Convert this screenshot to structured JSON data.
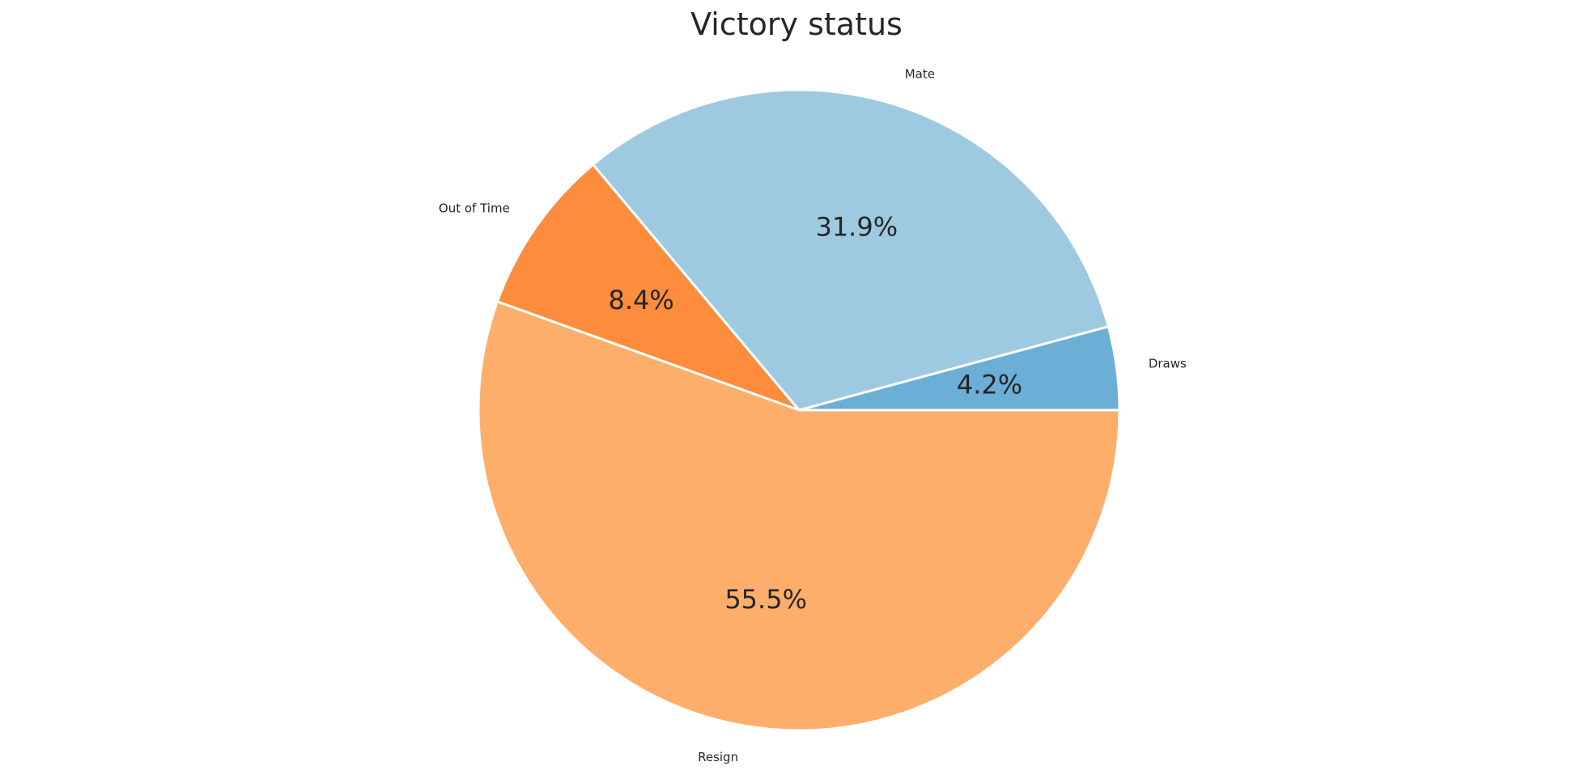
{
  "chart_data": {
    "type": "pie",
    "title": "Victory status",
    "slices": [
      {
        "label": "Draws",
        "value": 4.2,
        "pct_label": "4.2%",
        "color": "#6baed6"
      },
      {
        "label": "Mate",
        "value": 31.9,
        "pct_label": "31.9%",
        "color": "#9ecae1"
      },
      {
        "label": "Out of Time",
        "value": 8.4,
        "pct_label": "8.4%",
        "color": "#fd8d3c"
      },
      {
        "label": "Resign",
        "value": 55.5,
        "pct_label": "55.5%",
        "color": "#fdae6b"
      }
    ],
    "start_angle_deg": 0,
    "direction": "counterclockwise",
    "legend": "none"
  }
}
